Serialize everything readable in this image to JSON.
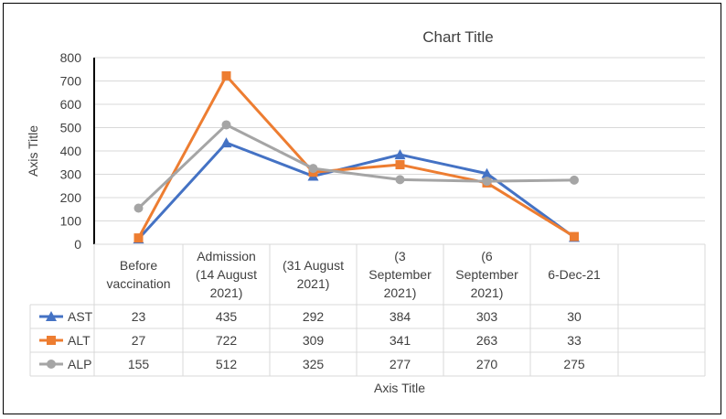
{
  "chart_data": {
    "type": "line",
    "title": "Chart Title",
    "xlabel": "Axis Title",
    "ylabel": "Axis Title",
    "ylim": [
      0,
      800
    ],
    "yticks": [
      0,
      100,
      200,
      300,
      400,
      500,
      600,
      700,
      800
    ],
    "grid": true,
    "legend": "data-table",
    "categories": [
      [
        "Before",
        "vaccination"
      ],
      [
        "Admission",
        "(14 August",
        "2021)"
      ],
      [
        "(31 August",
        "2021)"
      ],
      [
        "(3",
        "September",
        "2021)"
      ],
      [
        "(6",
        "September",
        "2021)"
      ],
      [
        "6-Dec-21"
      ]
    ],
    "series": [
      {
        "name": "AST",
        "color": "#4472C4",
        "marker": "triangle",
        "values": [
          23,
          435,
          292,
          384,
          303,
          30
        ]
      },
      {
        "name": "ALT",
        "color": "#ED7D31",
        "marker": "square",
        "values": [
          27,
          722,
          309,
          341,
          263,
          33
        ]
      },
      {
        "name": "ALP",
        "color": "#A5A5A5",
        "marker": "circle",
        "values": [
          155,
          512,
          325,
          277,
          270,
          275
        ]
      }
    ]
  }
}
